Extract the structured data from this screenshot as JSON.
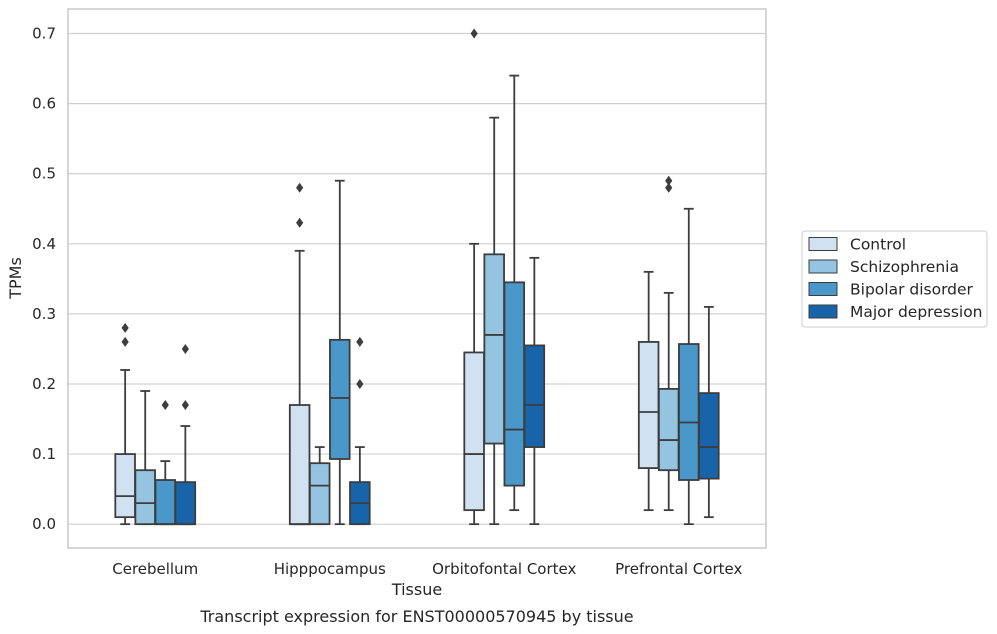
{
  "chart_data": {
    "type": "boxplot",
    "xlabel": "Tissue",
    "ylabel": "TPMs",
    "caption": "Transcript expression for ENST00000570945 by tissue",
    "ylim": [
      -0.034,
      0.735
    ],
    "yticks": [
      0.0,
      0.1,
      0.2,
      0.3,
      0.4,
      0.5,
      0.6,
      0.7
    ],
    "ytick_labels": [
      "0.0",
      "0.1",
      "0.2",
      "0.3",
      "0.4",
      "0.5",
      "0.6",
      "0.7"
    ],
    "grid": "horizontal",
    "legend_position": "right",
    "categories": [
      "Cerebellum",
      "Hipppocampus",
      "Orbitofontal Cortex",
      "Prefrontal Cortex"
    ],
    "series": [
      {
        "name": "Control",
        "color": "#d0e1f2",
        "boxes": [
          {
            "whisker_low": 0.0,
            "q1": 0.01,
            "median": 0.04,
            "q3": 0.1,
            "whisker_high": 0.22,
            "outliers": [
              0.26,
              0.28
            ]
          },
          {
            "whisker_low": 0.0,
            "q1": 0.0,
            "median": 0.0,
            "q3": 0.17,
            "whisker_high": 0.39,
            "outliers": [
              0.43,
              0.48
            ]
          },
          {
            "whisker_low": 0.0,
            "q1": 0.02,
            "median": 0.1,
            "q3": 0.245,
            "whisker_high": 0.4,
            "outliers": [
              0.7
            ]
          },
          {
            "whisker_low": 0.02,
            "q1": 0.08,
            "median": 0.16,
            "q3": 0.26,
            "whisker_high": 0.36,
            "outliers": []
          }
        ]
      },
      {
        "name": "Schizophrenia",
        "color": "#94c4df",
        "boxes": [
          {
            "whisker_low": 0.0,
            "q1": 0.0,
            "median": 0.03,
            "q3": 0.077,
            "whisker_high": 0.19,
            "outliers": []
          },
          {
            "whisker_low": 0.0,
            "q1": 0.0,
            "median": 0.055,
            "q3": 0.087,
            "whisker_high": 0.11,
            "outliers": []
          },
          {
            "whisker_low": 0.0,
            "q1": 0.115,
            "median": 0.27,
            "q3": 0.385,
            "whisker_high": 0.58,
            "outliers": []
          },
          {
            "whisker_low": 0.02,
            "q1": 0.077,
            "median": 0.12,
            "q3": 0.193,
            "whisker_high": 0.33,
            "outliers": [
              0.48,
              0.49
            ]
          }
        ]
      },
      {
        "name": "Bipolar disorder",
        "color": "#4a98c9",
        "boxes": [
          {
            "whisker_low": 0.0,
            "q1": 0.0,
            "median": 0.0,
            "q3": 0.063,
            "whisker_high": 0.09,
            "outliers": [
              0.17
            ]
          },
          {
            "whisker_low": 0.0,
            "q1": 0.093,
            "median": 0.18,
            "q3": 0.263,
            "whisker_high": 0.49,
            "outliers": []
          },
          {
            "whisker_low": 0.02,
            "q1": 0.055,
            "median": 0.135,
            "q3": 0.345,
            "whisker_high": 0.64,
            "outliers": []
          },
          {
            "whisker_low": 0.0,
            "q1": 0.063,
            "median": 0.145,
            "q3": 0.257,
            "whisker_high": 0.45,
            "outliers": []
          }
        ]
      },
      {
        "name": "Major depression",
        "color": "#1764ab",
        "boxes": [
          {
            "whisker_low": 0.0,
            "q1": 0.0,
            "median": 0.0,
            "q3": 0.06,
            "whisker_high": 0.14,
            "outliers": [
              0.17,
              0.25
            ]
          },
          {
            "whisker_low": 0.0,
            "q1": 0.0,
            "median": 0.03,
            "q3": 0.06,
            "whisker_high": 0.11,
            "outliers": [
              0.2,
              0.26
            ]
          },
          {
            "whisker_low": 0.0,
            "q1": 0.11,
            "median": 0.17,
            "q3": 0.255,
            "whisker_high": 0.38,
            "outliers": []
          },
          {
            "whisker_low": 0.01,
            "q1": 0.065,
            "median": 0.11,
            "q3": 0.187,
            "whisker_high": 0.31,
            "outliers": []
          }
        ]
      }
    ]
  }
}
